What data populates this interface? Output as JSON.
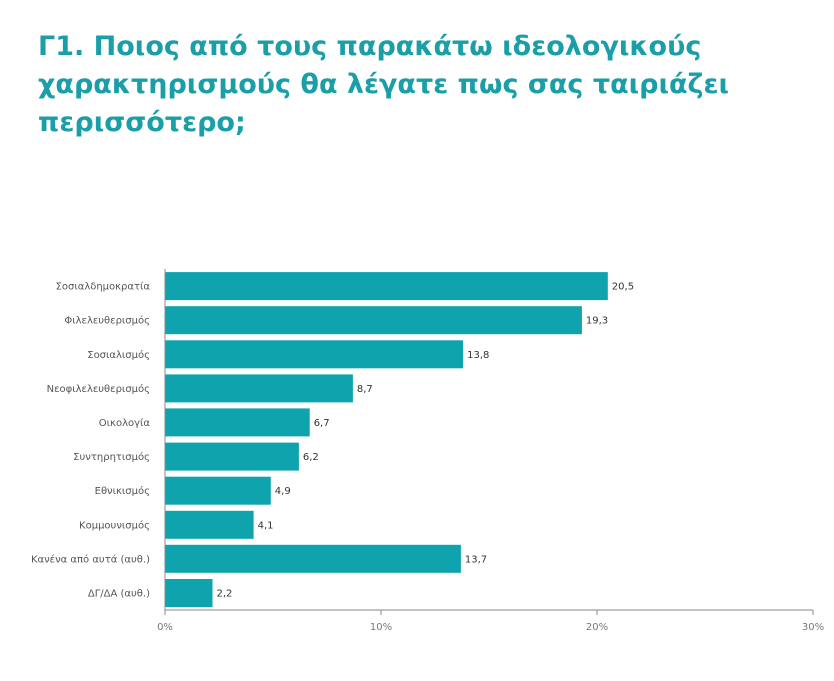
{
  "page": {
    "title": "Γ1. Ποιος από τους παρακάτω ιδεολογικούς χαρακτηρισμούς θα λέγατε πως σας ταιριάζει περισσότερο;"
  },
  "colors": {
    "title": "#1a9fa9",
    "bar": "#0fa3ad",
    "axis": "#888888"
  },
  "chart_data": {
    "type": "bar",
    "orientation": "horizontal",
    "title": "Γ1. Ποιος από τους παρακάτω ιδεολογικούς χαρακτηρισμούς θα λέγατε πως σας ταιριάζει περισσότερο;",
    "categories": [
      "Σοσιαλδημοκρατία",
      "Φιλελευθερισμός",
      "Σοσιαλισμός",
      "Νεοφιλελευθερισμός",
      "Οικολογία",
      "Συντηρητισμός",
      "Εθνικισμός",
      "Κομμουνισμός",
      "Κανένα από αυτά (αυθ.)",
      "ΔΓ/ΔΑ (αυθ.)"
    ],
    "values": [
      20.5,
      19.3,
      13.8,
      8.7,
      6.7,
      6.2,
      4.9,
      4.1,
      13.7,
      2.2
    ],
    "value_labels": [
      "20,5",
      "19,3",
      "13,8",
      "8,7",
      "6,7",
      "6,2",
      "4,9",
      "4,1",
      "13,7",
      "2,2"
    ],
    "xlim": [
      0,
      30
    ],
    "xticks": [
      0,
      10,
      20,
      30
    ],
    "xtick_labels": [
      "0%",
      "10%",
      "20%",
      "30%"
    ],
    "grid": false,
    "legend": "none"
  }
}
